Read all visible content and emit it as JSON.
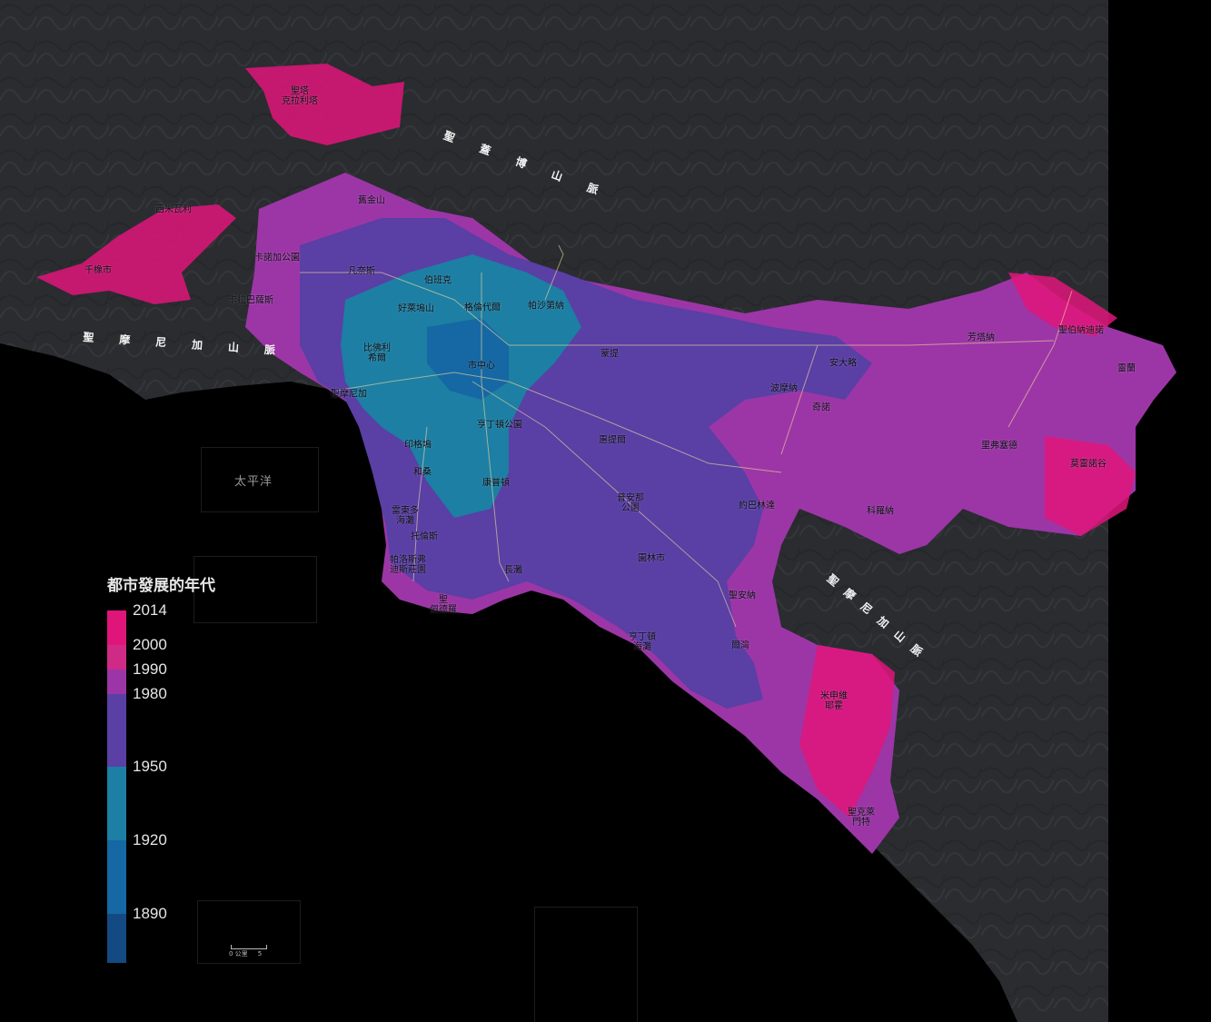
{
  "colors": {
    "terrain": "#2a2c30",
    "ocean": "#000000",
    "road": "#f2d9a0"
  },
  "ranges": [
    {
      "name": "聖蓋博山脈"
    },
    {
      "name": "聖摩尼加山脈"
    },
    {
      "name": "聖摩尼加山脈"
    }
  ],
  "ocean_label": "太平洋",
  "legend": {
    "title": "都市發展的年代",
    "segments": [
      {
        "from": 2000,
        "to": 2014,
        "color": "#e0157a"
      },
      {
        "from": 1990,
        "to": 2000,
        "color": "#cf2b86"
      },
      {
        "from": 1980,
        "to": 1990,
        "color": "#9c36a6"
      },
      {
        "from": 1950,
        "to": 1980,
        "color": "#5a3fa5"
      },
      {
        "from": 1920,
        "to": 1950,
        "color": "#1c7fa3"
      },
      {
        "from": 1890,
        "to": 1920,
        "color": "#1568a3"
      },
      {
        "from": 1870,
        "to": 1890,
        "color": "#134a84"
      }
    ],
    "tick_labels": [
      "2014",
      "2000",
      "1990",
      "1980",
      "1950",
      "1920",
      "1890"
    ]
  },
  "scale_bar": {
    "label": "0 公里     5"
  },
  "places": [
    {
      "name": "聖塔\n克拉利塔"
    },
    {
      "name": "西米瓦利"
    },
    {
      "name": "千橡市"
    },
    {
      "name": "舊金山"
    },
    {
      "name": "卡諾加公園"
    },
    {
      "name": "凡奈斯"
    },
    {
      "name": "伯班克"
    },
    {
      "name": "卡拉巴薩斯"
    },
    {
      "name": "好萊塢山"
    },
    {
      "name": "格倫代爾"
    },
    {
      "name": "帕沙第納"
    },
    {
      "name": "比佛利\n希爾"
    },
    {
      "name": "市中心"
    },
    {
      "name": "蒙提"
    },
    {
      "name": "聖摩尼加"
    },
    {
      "name": "印格塢"
    },
    {
      "name": "亨丁頓公園"
    },
    {
      "name": "惠提爾"
    },
    {
      "name": "和桑"
    },
    {
      "name": "康普頓"
    },
    {
      "name": "雷東多\n海灘"
    },
    {
      "name": "托倫斯"
    },
    {
      "name": "帕洛斯弗\n迪斯莊園"
    },
    {
      "name": "長灘"
    },
    {
      "name": "聖\n佩德羅"
    },
    {
      "name": "普安那\n公園"
    },
    {
      "name": "約巴林達"
    },
    {
      "name": "園林市"
    },
    {
      "name": "聖安納"
    },
    {
      "name": "亨丁頓\n海灘"
    },
    {
      "name": "爾灣"
    },
    {
      "name": "米申維\n耶霍"
    },
    {
      "name": "聖克萊\n門特"
    },
    {
      "name": "安大略"
    },
    {
      "name": "波摩納"
    },
    {
      "name": "奇諾"
    },
    {
      "name": "芳塔納"
    },
    {
      "name": "聖伯納迪諾"
    },
    {
      "name": "雷蘭"
    },
    {
      "name": "里弗塞德"
    },
    {
      "name": "莫雷諾谷"
    },
    {
      "name": "科羅納"
    }
  ]
}
